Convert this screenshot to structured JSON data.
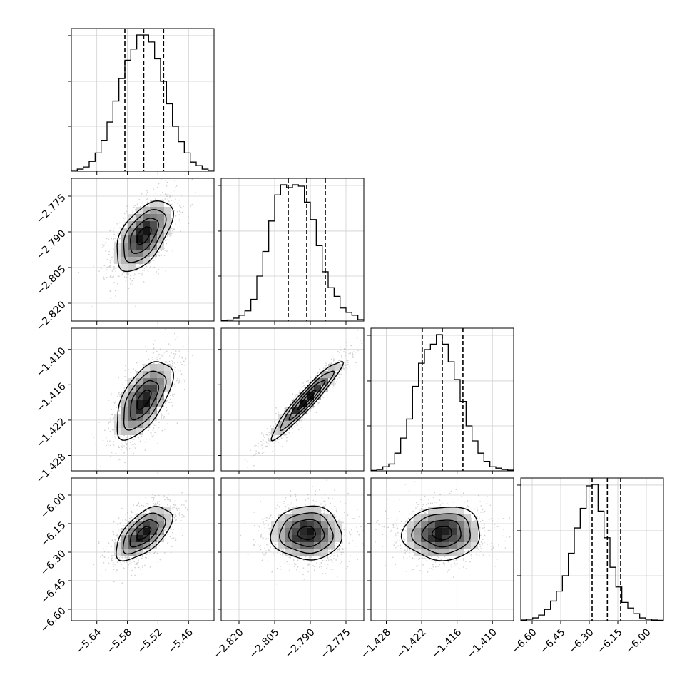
{
  "chart_data": {
    "type": "corner",
    "grid": true,
    "parameters": [
      {
        "range": [
          -5.69,
          -5.41
        ],
        "ticks": [
          -5.64,
          -5.58,
          -5.52,
          -5.46
        ],
        "tick_labels": [
          "−5.64",
          "−5.58",
          "−5.52",
          "−5.46"
        ],
        "quantiles": [
          -5.585,
          -5.548,
          -5.509
        ],
        "mean": -5.548,
        "sd": 0.0275,
        "hist": [
          0.5,
          1.5,
          3,
          7,
          13,
          22,
          35,
          50,
          66,
          79,
          87,
          97,
          97,
          92,
          80,
          64,
          48,
          32,
          21,
          13,
          6.5,
          4,
          1.5,
          0.5
        ]
      },
      {
        "range": [
          -2.8275,
          -2.7675
        ],
        "ticks": [
          -2.82,
          -2.805,
          -2.79,
          -2.775
        ],
        "tick_labels": [
          "−2.820",
          "−2.805",
          "−2.790",
          "−2.775"
        ],
        "quantiles": [
          -2.7993,
          -2.7915,
          -2.7837
        ],
        "mean": -2.7915,
        "sd": 0.0074,
        "hist": [
          0.3,
          0.7,
          2,
          4,
          7,
          15,
          31,
          48,
          69,
          87,
          94,
          92,
          94,
          93,
          82,
          70,
          52,
          34,
          23,
          17,
          9,
          6,
          4,
          1
        ]
      },
      {
        "range": [
          -1.4306,
          -1.4064
        ],
        "ticks": [
          -1.428,
          -1.422,
          -1.416,
          -1.41
        ],
        "tick_labels": [
          "−1.428",
          "−1.422",
          "−1.416",
          "−1.410"
        ],
        "quantiles": [
          -1.4219,
          -1.4185,
          -1.415
        ],
        "mean": -1.4185,
        "sd": 0.0033,
        "hist": [
          0.3,
          1,
          3,
          5,
          13,
          24,
          38,
          62,
          79,
          89,
          93,
          100,
          93,
          80,
          67,
          51,
          33,
          22,
          13,
          7,
          3,
          2,
          1,
          0.5
        ]
      },
      {
        "range": [
          -6.66,
          -5.91
        ],
        "ticks": [
          -6.6,
          -6.45,
          -6.3,
          -6.15,
          -6.0
        ],
        "tick_labels": [
          "−6.60",
          "−6.45",
          "−6.30",
          "−6.15",
          "−6.00"
        ],
        "quantiles": [
          -6.285,
          -6.205,
          -6.135
        ],
        "mean": -6.2,
        "sd": 0.07,
        "hist": [
          0.5,
          1,
          2,
          4,
          8,
          14,
          21,
          32,
          48,
          66,
          80,
          96,
          97,
          78,
          59,
          38,
          24,
          13,
          9,
          5,
          2,
          1,
          0.5,
          0.3
        ]
      }
    ],
    "correlations": {
      "1-0": 0.55,
      "2-0": 0.6,
      "2-1": 0.95,
      "3-0": 0.6,
      "3-1": 0.0,
      "3-2": 0.05
    }
  }
}
